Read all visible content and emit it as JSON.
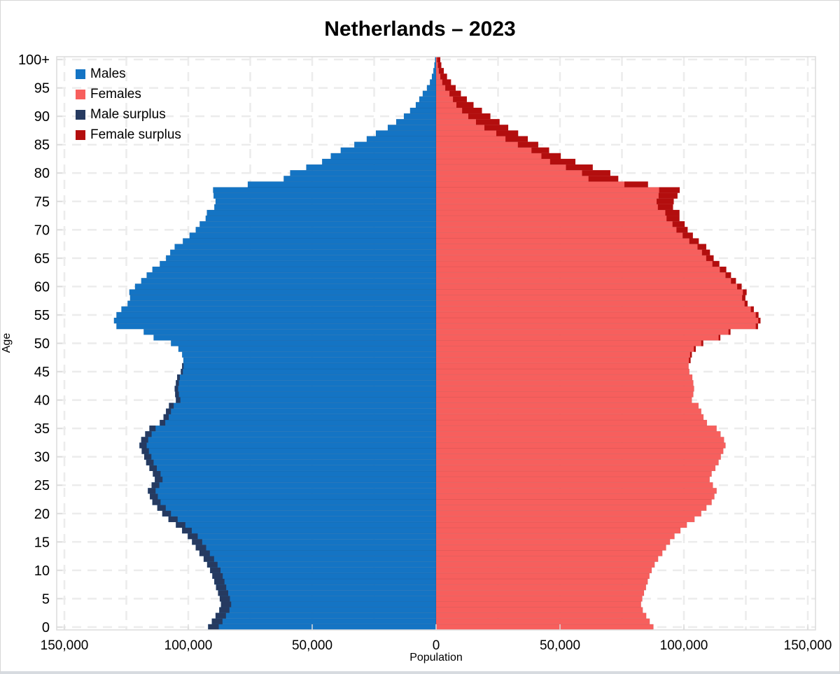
{
  "window": {
    "background": "#ffffff",
    "frame_border": "#d6d6d6"
  },
  "chart_data": {
    "type": "bar",
    "variant": "population_pyramid",
    "title": "Netherlands – 2023",
    "xlabel": "Population",
    "ylabel": "Age",
    "units": "persons per single year of age",
    "xlim": [
      -153000,
      153000
    ],
    "grid": "dashed, vertical every 25,000 and horizontal every 5 years",
    "legend_position": "top-left inside plot",
    "legend": [
      {
        "key": "males",
        "label": "Males"
      },
      {
        "key": "females",
        "label": "Females"
      },
      {
        "key": "male_surplus",
        "label": "Male surplus"
      },
      {
        "key": "female_surplus",
        "label": "Female surplus"
      }
    ],
    "colors": {
      "males": "#1474c4",
      "females": "#f75f5d",
      "male_surplus": "#263a60",
      "female_surplus": "#b30e0e",
      "gridline": "#ececec",
      "plot_border": "#dcdcdc",
      "text": "#000000"
    },
    "x_ticks": [
      {
        "v": -150000,
        "label": "150,000"
      },
      {
        "v": -100000,
        "label": "100,000"
      },
      {
        "v": -50000,
        "label": "50,000"
      },
      {
        "v": 0,
        "label": "0"
      },
      {
        "v": 50000,
        "label": "50,000"
      },
      {
        "v": 100000,
        "label": "100,000"
      },
      {
        "v": 150000,
        "label": "150,000"
      }
    ],
    "y_ticks": [
      {
        "age": 0,
        "label": "0"
      },
      {
        "age": 5,
        "label": "5"
      },
      {
        "age": 10,
        "label": "10"
      },
      {
        "age": 15,
        "label": "15"
      },
      {
        "age": 20,
        "label": "20"
      },
      {
        "age": 25,
        "label": "25"
      },
      {
        "age": 30,
        "label": "30"
      },
      {
        "age": 35,
        "label": "35"
      },
      {
        "age": 40,
        "label": "40"
      },
      {
        "age": 45,
        "label": "45"
      },
      {
        "age": 50,
        "label": "50"
      },
      {
        "age": 55,
        "label": "55"
      },
      {
        "age": 60,
        "label": "60"
      },
      {
        "age": 65,
        "label": "65"
      },
      {
        "age": 70,
        "label": "70"
      },
      {
        "age": 75,
        "label": "75"
      },
      {
        "age": 80,
        "label": "80"
      },
      {
        "age": 85,
        "label": "85"
      },
      {
        "age": 90,
        "label": "90"
      },
      {
        "age": 95,
        "label": "95"
      },
      {
        "age": 100,
        "label": "100+"
      }
    ],
    "ages": "index = age in years, 0 through 100 (100 = 100+)",
    "series": [
      {
        "name": "males",
        "values": [
          92000,
          90500,
          89000,
          87500,
          86800,
          87300,
          88000,
          88800,
          89500,
          90300,
          91200,
          92400,
          93800,
          95500,
          97000,
          98500,
          100200,
          102500,
          105000,
          108000,
          110500,
          112500,
          114500,
          115500,
          116300,
          114800,
          113500,
          114300,
          115700,
          117000,
          117800,
          118800,
          119700,
          119000,
          117400,
          115700,
          111500,
          110000,
          109000,
          107800,
          105000,
          105300,
          105500,
          105000,
          104500,
          103000,
          102500,
          102000,
          102500,
          104000,
          107000,
          114000,
          118000,
          129000,
          130000,
          129000,
          127000,
          124500,
          123500,
          123800,
          121500,
          119000,
          116800,
          114500,
          111500,
          109000,
          107300,
          105500,
          102200,
          99500,
          97000,
          95400,
          93000,
          92500,
          89500,
          89000,
          89800,
          90000,
          76000,
          61500,
          58900,
          52400,
          46000,
          42500,
          38500,
          33000,
          28000,
          24300,
          19500,
          16100,
          13000,
          10500,
          8200,
          6800,
          5400,
          3700,
          2500,
          1700,
          1100,
          700,
          400
        ]
      },
      {
        "name": "females",
        "values": [
          87700,
          86200,
          84800,
          83400,
          82700,
          83200,
          83900,
          84700,
          85400,
          86100,
          87000,
          88200,
          89600,
          91300,
          92800,
          94400,
          96200,
          98600,
          101200,
          104300,
          107000,
          109100,
          111200,
          112300,
          113200,
          111700,
          110400,
          111200,
          112700,
          114000,
          114900,
          115900,
          116800,
          116200,
          114800,
          113200,
          109300,
          107900,
          107000,
          105900,
          103200,
          103800,
          104100,
          103800,
          103400,
          102200,
          101900,
          102700,
          103200,
          104800,
          107800,
          114700,
          118800,
          129900,
          130900,
          130100,
          128200,
          125700,
          124800,
          125300,
          123300,
          121000,
          119000,
          117100,
          114300,
          112000,
          110500,
          109000,
          106000,
          103600,
          101500,
          100300,
          98200,
          98200,
          95600,
          95900,
          97400,
          98300,
          85500,
          73500,
          70300,
          63200,
          56200,
          50300,
          45600,
          41200,
          37000,
          33100,
          29100,
          25600,
          21900,
          18500,
          15100,
          12400,
          10000,
          7900,
          6000,
          4400,
          3100,
          2100,
          1700
        ]
      }
    ]
  }
}
